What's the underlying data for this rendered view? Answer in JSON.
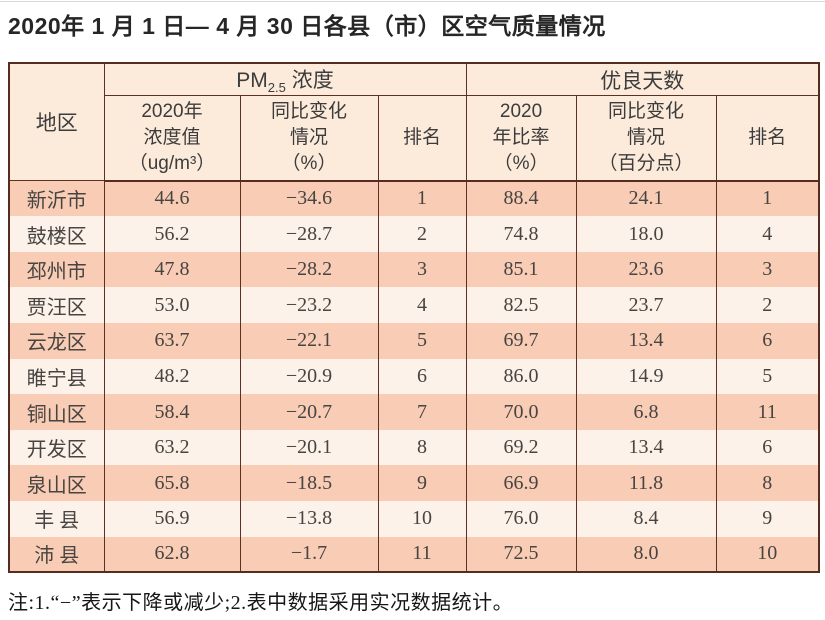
{
  "title": "2020年 1 月 1 日— 4 月 30 日各县（市）区空气质量情况",
  "table": {
    "region_header": "地区",
    "pm_group": {
      "main": "PM",
      "sub": "2.5",
      "rest": " 浓度"
    },
    "good_group": "优良天数",
    "sub_headers": [
      "2020年\n浓度值\n（ug/m³）",
      "同比变化\n情况\n（%）",
      "排名",
      "2020\n年比率\n（%）",
      "同比变化\n情况\n（百分点）",
      "排名"
    ],
    "rows": [
      [
        "新沂市",
        "44.6",
        "−34.6",
        "1",
        "88.4",
        "24.1",
        "1"
      ],
      [
        "鼓楼区",
        "56.2",
        "−28.7",
        "2",
        "74.8",
        "18.0",
        "4"
      ],
      [
        "邳州市",
        "47.8",
        "−28.2",
        "3",
        "85.1",
        "23.6",
        "3"
      ],
      [
        "贾汪区",
        "53.0",
        "−23.2",
        "4",
        "82.5",
        "23.7",
        "2"
      ],
      [
        "云龙区",
        "63.7",
        "−22.1",
        "5",
        "69.7",
        "13.4",
        "6"
      ],
      [
        "睢宁县",
        "48.2",
        "−20.9",
        "6",
        "86.0",
        "14.9",
        "5"
      ],
      [
        "铜山区",
        "58.4",
        "−20.7",
        "7",
        "70.0",
        "6.8",
        "11"
      ],
      [
        "开发区",
        "63.2",
        "−20.1",
        "8",
        "69.2",
        "13.4",
        "6"
      ],
      [
        "泉山区",
        "65.8",
        "−18.5",
        "9",
        "66.9",
        "11.8",
        "8"
      ],
      [
        "丰 县",
        "56.9",
        "−13.8",
        "10",
        "76.0",
        "8.4",
        "9"
      ],
      [
        "沛 县",
        "62.8",
        "−1.7",
        "11",
        "72.5",
        "8.0",
        "10"
      ]
    ]
  },
  "note": "注:1.“−”表示下降或减少;2.表中数据采用实况数据统计。",
  "colors": {
    "border": "#562b20",
    "header_bg": "#fcebdb",
    "row_shade_bg": "#f8ccb5",
    "row_light_bg": "#fdf2ea",
    "title_text": "#262626",
    "cell_text": "#474441"
  }
}
